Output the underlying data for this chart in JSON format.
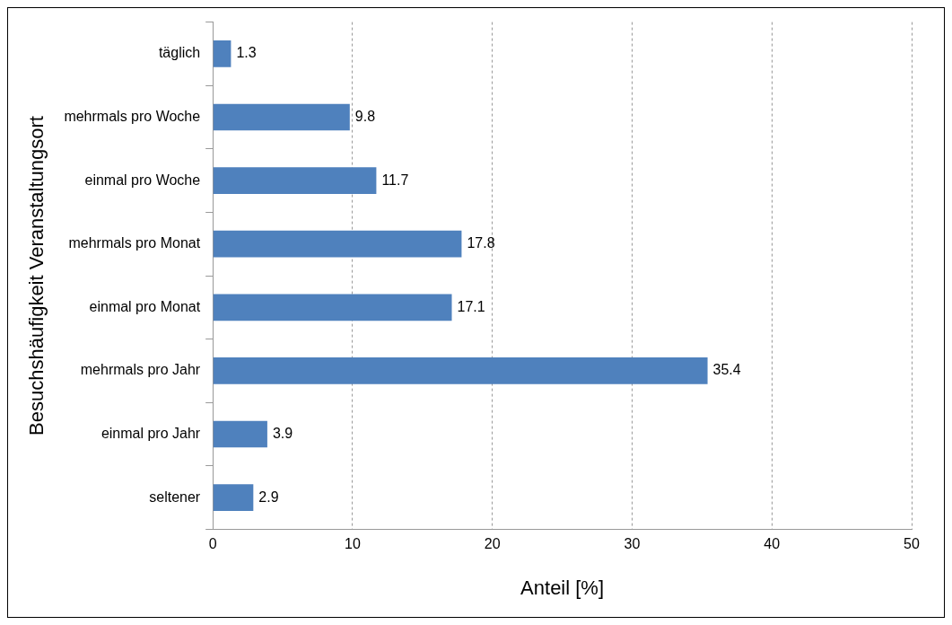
{
  "chart_data": {
    "type": "bar",
    "orientation": "horizontal",
    "xlabel": "Anteil [%]",
    "ylabel": "Besuchshäufigkeit Veranstaltungsort",
    "categories": [
      "täglich",
      "mehrmals pro Woche",
      "einmal pro Woche",
      "mehrmals pro Monat",
      "einmal pro Monat",
      "mehrmals pro Jahr",
      "einmal pro Jahr",
      "seltener"
    ],
    "values": [
      1.3,
      9.8,
      11.7,
      17.8,
      17.1,
      35.4,
      3.9,
      2.9
    ],
    "color": "#4f81bd",
    "data_labels": true,
    "xlim": [
      0,
      50
    ],
    "xticks": [
      0,
      10,
      20,
      30,
      40,
      50
    ],
    "grid": "x",
    "legend": false
  }
}
